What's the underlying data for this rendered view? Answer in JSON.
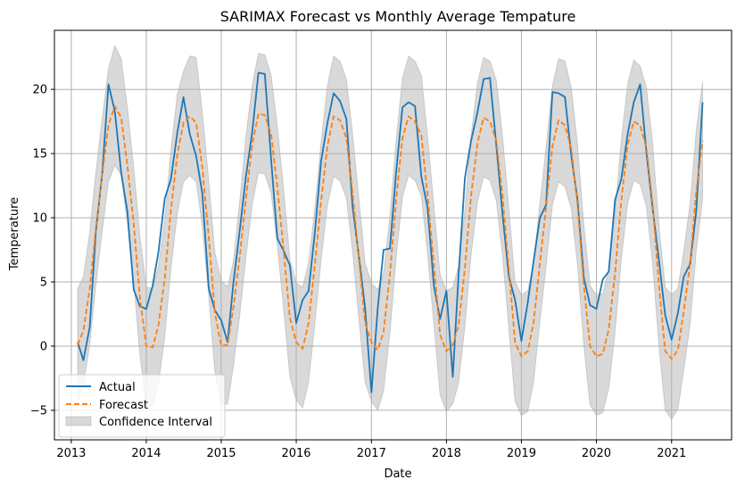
{
  "chart_data": {
    "type": "line",
    "title": "SARIMAX Forecast vs Monthly Average Tempature",
    "xlabel": "Date",
    "ylabel": "Temperature",
    "x_start": "2013-02",
    "x_end": "2021-07",
    "xlim": [
      "2012-10-11",
      "2021-10-20"
    ],
    "ylim": [
      -7.3,
      24.6
    ],
    "xticks": [
      "2013",
      "2014",
      "2015",
      "2016",
      "2017",
      "2018",
      "2019",
      "2020",
      "2021"
    ],
    "yticks": [
      -5,
      0,
      5,
      10,
      15,
      20
    ],
    "grid": true,
    "legend_position": "lower-left",
    "series": [
      {
        "name": "Actual",
        "color": "#1f77b4",
        "style": "solid",
        "values": [
          0.3,
          -1.1,
          1.5,
          9.0,
          13.5,
          20.4,
          18.3,
          13.5,
          10.5,
          4.4,
          3.1,
          2.9,
          4.7,
          7.3,
          11.5,
          13.0,
          16.6,
          19.4,
          16.5,
          14.8,
          11.9,
          4.5,
          2.8,
          2.0,
          0.3,
          4.9,
          9.0,
          13.2,
          16.7,
          21.3,
          21.2,
          14.5,
          8.4,
          7.4,
          6.3,
          1.8,
          3.6,
          4.3,
          8.9,
          14.4,
          17.4,
          19.7,
          19.1,
          17.7,
          10.9,
          7.0,
          3.0,
          -3.6,
          3.0,
          7.5,
          7.6,
          13.5,
          18.6,
          19.0,
          18.7,
          13.2,
          10.8,
          4.7,
          2.1,
          4.3,
          -2.4,
          5.5,
          13.1,
          16.0,
          18.2,
          20.8,
          20.9,
          15.6,
          10.3,
          5.4,
          3.6,
          0.4,
          3.4,
          6.6,
          10.0,
          11.0,
          19.8,
          19.7,
          19.4,
          14.8,
          11.4,
          5.3,
          3.2,
          2.9,
          5.2,
          5.8,
          11.4,
          13.0,
          16.5,
          19.0,
          20.4,
          15.0,
          10.7,
          6.6,
          2.4,
          0.5,
          2.6,
          5.4,
          6.4,
          10.5,
          19.0
        ]
      },
      {
        "name": "Forecast",
        "color": "#ff7f0e",
        "style": "dashed",
        "values": [
          0.1,
          1.2,
          4.5,
          9.2,
          13.4,
          17.2,
          18.7,
          17.8,
          14.1,
          9.5,
          3.8,
          0.0,
          -0.1,
          1.6,
          5.3,
          10.6,
          14.9,
          17.4,
          17.9,
          17.4,
          13.9,
          8.5,
          2.6,
          0.0,
          0.1,
          3.0,
          7.0,
          11.5,
          15.7,
          18.1,
          18.0,
          16.5,
          12.4,
          7.4,
          2.2,
          0.3,
          -0.2,
          1.8,
          6.4,
          11.3,
          15.6,
          17.9,
          17.6,
          16.2,
          12.0,
          6.8,
          1.8,
          0.3,
          -0.3,
          1.1,
          5.6,
          11.4,
          16.2,
          17.9,
          17.5,
          16.4,
          11.8,
          6.3,
          0.9,
          -0.4,
          0.1,
          1.6,
          6.1,
          11.7,
          15.8,
          17.8,
          17.5,
          16.0,
          11.7,
          6.0,
          0.3,
          -0.8,
          -0.4,
          1.8,
          6.5,
          10.8,
          15.6,
          17.6,
          17.2,
          15.4,
          11.0,
          4.7,
          0.0,
          -0.8,
          -0.6,
          1.3,
          5.7,
          11.3,
          15.7,
          17.5,
          17.2,
          15.4,
          11.0,
          4.6,
          -0.4,
          -1.0,
          -0.3,
          2.7,
          6.4,
          12.1,
          16.0
        ]
      }
    ],
    "confidence_interval": {
      "name": "Confidence Interval",
      "color": "#808080",
      "upper": [
        4.5,
        5.4,
        8.9,
        13.6,
        17.8,
        21.6,
        23.4,
        22.4,
        18.6,
        13.9,
        8.6,
        4.6,
        4.5,
        6.2,
        9.9,
        15.3,
        19.6,
        21.4,
        22.6,
        22.5,
        18.2,
        12.9,
        7.3,
        5.1,
        4.6,
        6.6,
        11.3,
        16.3,
        20.4,
        22.8,
        22.7,
        21.1,
        17.1,
        12.2,
        6.8,
        4.9,
        4.6,
        6.5,
        10.8,
        15.9,
        20.3,
        22.6,
        22.2,
        20.8,
        16.6,
        11.5,
        6.5,
        4.9,
        4.4,
        5.7,
        10.1,
        16.0,
        20.9,
        22.6,
        22.2,
        21.1,
        16.4,
        10.9,
        5.6,
        4.3,
        4.6,
        6.2,
        10.7,
        16.4,
        20.5,
        22.5,
        22.2,
        20.7,
        16.4,
        10.7,
        5.0,
        4.0,
        4.3,
        6.5,
        11.1,
        15.5,
        20.3,
        22.4,
        22.2,
        20.1,
        15.7,
        9.4,
        4.7,
        4.0,
        4.1,
        6.0,
        10.4,
        16.0,
        20.4,
        22.3,
        21.8,
        20.1,
        15.7,
        9.3,
        4.6,
        4.0,
        4.5,
        7.4,
        11.1,
        16.8,
        20.6
      ],
      "lower": [
        -4.3,
        -3.0,
        0.1,
        4.8,
        9.0,
        12.8,
        14.1,
        13.3,
        9.6,
        5.0,
        -0.7,
        -4.6,
        -4.7,
        -3.0,
        0.7,
        6.0,
        10.3,
        12.8,
        13.3,
        12.8,
        9.3,
        3.9,
        -2.0,
        -4.6,
        -4.5,
        -1.6,
        2.4,
        6.9,
        11.1,
        13.5,
        13.4,
        11.9,
        7.8,
        2.8,
        -2.4,
        -4.2,
        -4.8,
        -2.8,
        1.8,
        6.7,
        11.0,
        13.2,
        12.9,
        11.5,
        7.4,
        2.1,
        -2.8,
        -4.3,
        -5.0,
        -3.5,
        1.0,
        6.8,
        11.6,
        13.3,
        12.9,
        11.7,
        7.2,
        1.7,
        -3.8,
        -5.1,
        -4.5,
        -2.9,
        1.5,
        7.1,
        11.2,
        13.2,
        12.9,
        11.3,
        7.0,
        1.3,
        -4.3,
        -5.4,
        -5.1,
        -2.8,
        1.9,
        6.2,
        11.0,
        12.8,
        12.4,
        10.7,
        6.3,
        0.0,
        -4.6,
        -5.4,
        -5.2,
        -3.3,
        1.1,
        6.7,
        11.1,
        12.9,
        12.6,
        10.8,
        6.3,
        -0.1,
        -5.0,
        -5.7,
        -4.9,
        -1.9,
        1.7,
        7.4,
        11.4
      ]
    }
  }
}
